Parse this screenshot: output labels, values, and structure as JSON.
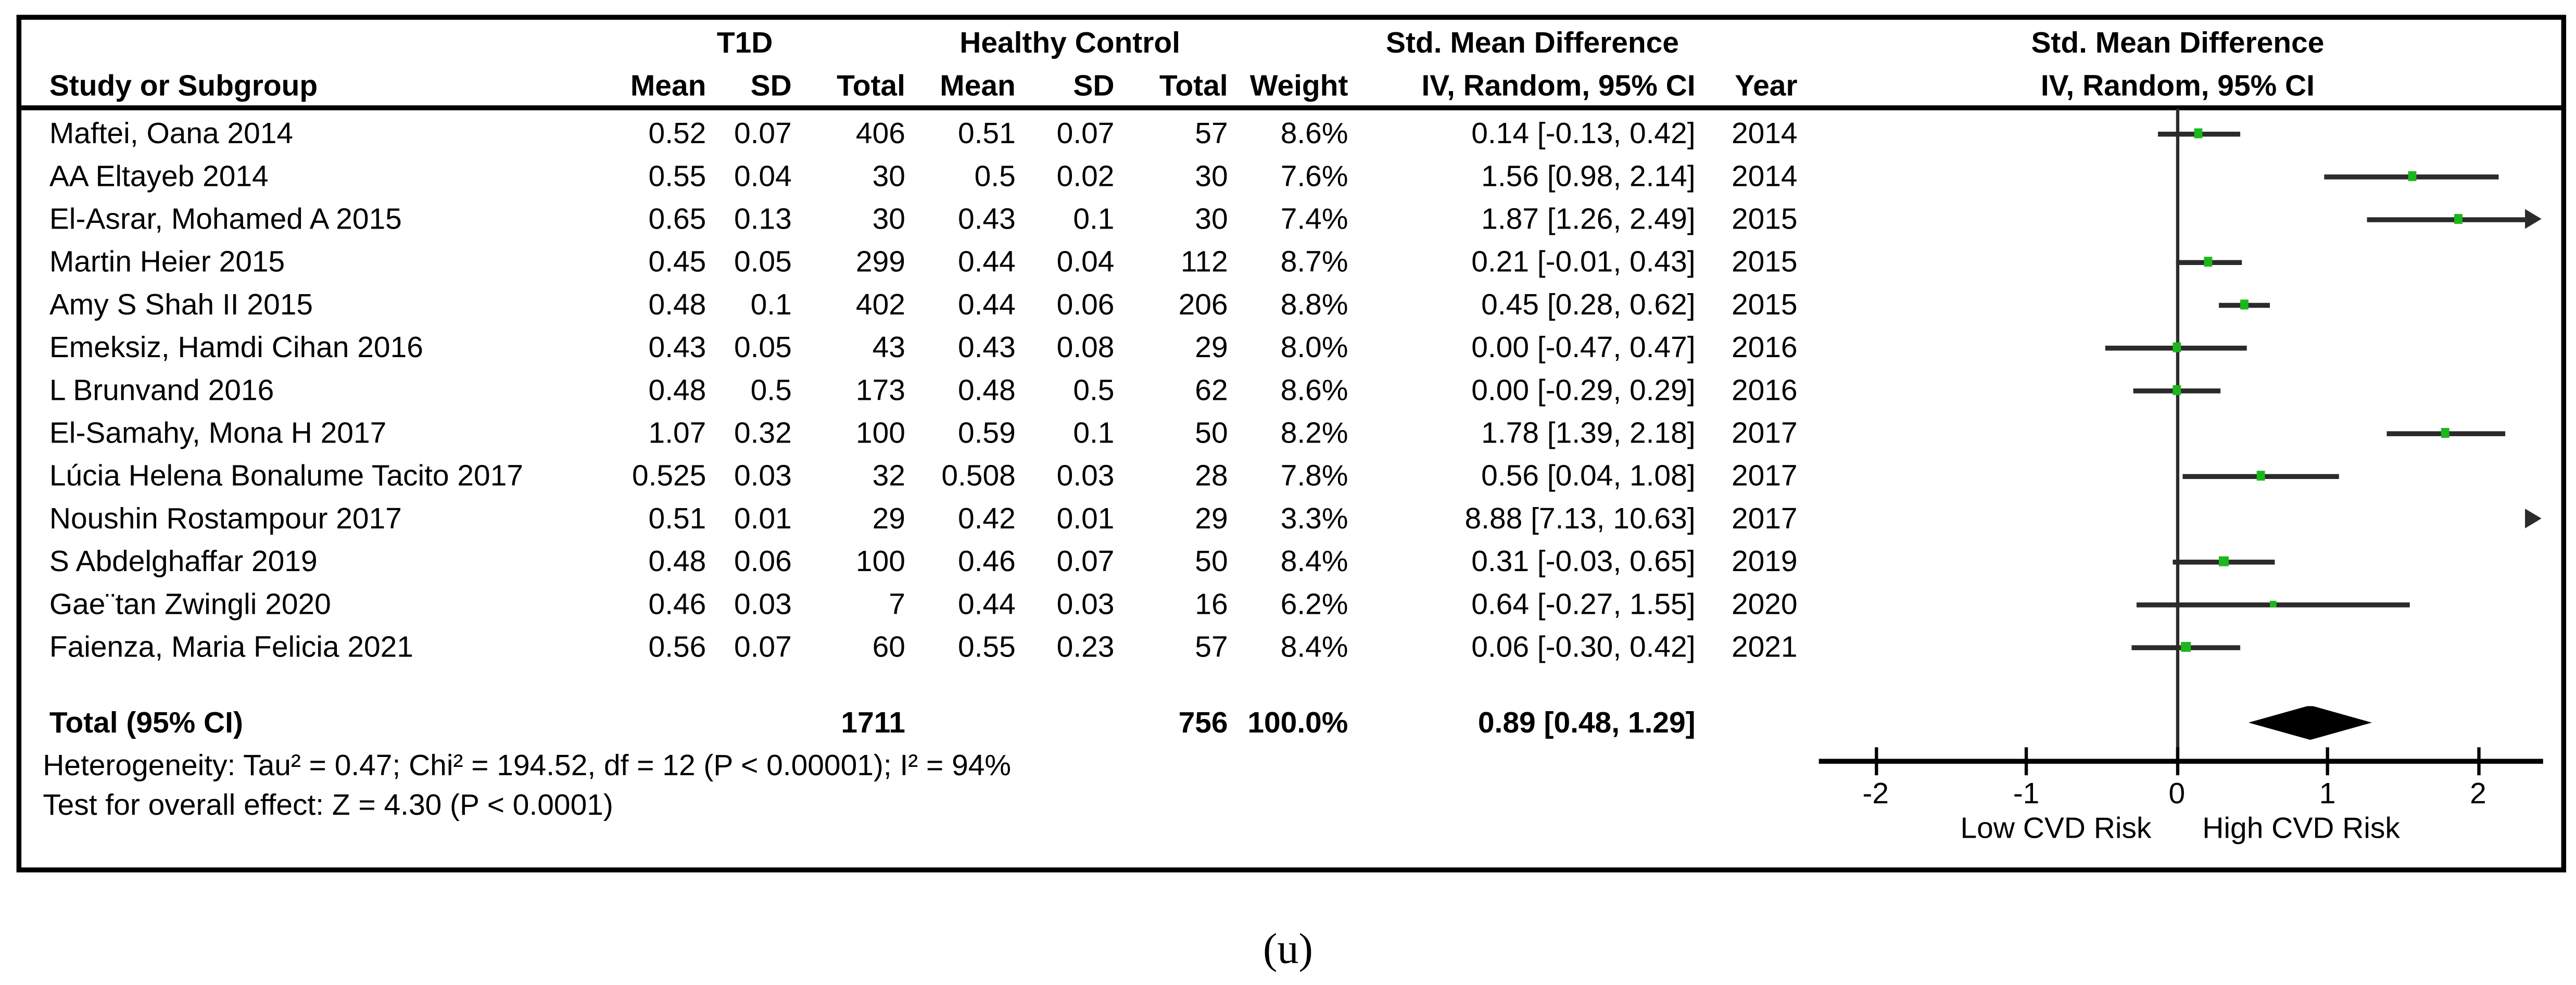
{
  "header": {
    "group_t1d": "T1D",
    "group_control": "Healthy Control",
    "group_smd": "Std. Mean Difference",
    "col_study": "Study or Subgroup",
    "col_mean": "Mean",
    "col_sd": "SD",
    "col_total": "Total",
    "col_mean2": "Mean",
    "col_sd2": "SD",
    "col_total2": "Total",
    "col_weight": "Weight",
    "col_ci": "IV, Random, 95% CI",
    "col_year": "Year",
    "right_panel_title": "Std. Mean Difference",
    "right_panel_subtitle": "IV, Random, 95% CI"
  },
  "rows": [
    {
      "study": "Maftei, Oana 2014",
      "mean1": "0.52",
      "sd1": "0.07",
      "total1": "406",
      "mean2": "0.51",
      "sd2": "0.07",
      "total2": "57",
      "weight": "8.6%",
      "ci": "0.14 [-0.13, 0.42]",
      "year": "2014",
      "smd": 0.14,
      "lo": -0.13,
      "hi": 0.42,
      "w": 8.6
    },
    {
      "study": "AA Eltayeb 2014",
      "mean1": "0.55",
      "sd1": "0.04",
      "total1": "30",
      "mean2": "0.5",
      "sd2": "0.02",
      "total2": "30",
      "weight": "7.6%",
      "ci": "1.56 [0.98, 2.14]",
      "year": "2014",
      "smd": 1.56,
      "lo": 0.98,
      "hi": 2.14,
      "w": 7.6
    },
    {
      "study": "El-Asrar, Mohamed A 2015",
      "mean1": "0.65",
      "sd1": "0.13",
      "total1": "30",
      "mean2": "0.43",
      "sd2": "0.1",
      "total2": "30",
      "weight": "7.4%",
      "ci": "1.87 [1.26, 2.49]",
      "year": "2015",
      "smd": 1.87,
      "lo": 1.26,
      "hi": 2.49,
      "w": 7.4
    },
    {
      "study": "Martin Heier 2015",
      "mean1": "0.45",
      "sd1": "0.05",
      "total1": "299",
      "mean2": "0.44",
      "sd2": "0.04",
      "total2": "112",
      "weight": "8.7%",
      "ci": "0.21 [-0.01, 0.43]",
      "year": "2015",
      "smd": 0.21,
      "lo": -0.01,
      "hi": 0.43,
      "w": 8.7
    },
    {
      "study": "Amy S Shah II 2015",
      "mean1": "0.48",
      "sd1": "0.1",
      "total1": "402",
      "mean2": "0.44",
      "sd2": "0.06",
      "total2": "206",
      "weight": "8.8%",
      "ci": "0.45 [0.28, 0.62]",
      "year": "2015",
      "smd": 0.45,
      "lo": 0.28,
      "hi": 0.62,
      "w": 8.8
    },
    {
      "study": "Emeksiz, Hamdi Cihan 2016",
      "mean1": "0.43",
      "sd1": "0.05",
      "total1": "43",
      "mean2": "0.43",
      "sd2": "0.08",
      "total2": "29",
      "weight": "8.0%",
      "ci": "0.00 [-0.47, 0.47]",
      "year": "2016",
      "smd": 0.0,
      "lo": -0.47,
      "hi": 0.47,
      "w": 8.0
    },
    {
      "study": "L Brunvand 2016",
      "mean1": "0.48",
      "sd1": "0.5",
      "total1": "173",
      "mean2": "0.48",
      "sd2": "0.5",
      "total2": "62",
      "weight": "8.6%",
      "ci": "0.00 [-0.29, 0.29]",
      "year": "2016",
      "smd": 0.0,
      "lo": -0.29,
      "hi": 0.29,
      "w": 8.6
    },
    {
      "study": "El-Samahy, Mona H 2017",
      "mean1": "1.07",
      "sd1": "0.32",
      "total1": "100",
      "mean2": "0.59",
      "sd2": "0.1",
      "total2": "50",
      "weight": "8.2%",
      "ci": "1.78 [1.39, 2.18]",
      "year": "2017",
      "smd": 1.78,
      "lo": 1.39,
      "hi": 2.18,
      "w": 8.2
    },
    {
      "study": "Lúcia Helena Bonalume Tacito 2017",
      "mean1": "0.525",
      "sd1": "0.03",
      "total1": "32",
      "mean2": "0.508",
      "sd2": "0.03",
      "total2": "28",
      "weight": "7.8%",
      "ci": "0.56 [0.04, 1.08]",
      "year": "2017",
      "smd": 0.56,
      "lo": 0.04,
      "hi": 1.08,
      "w": 7.8
    },
    {
      "study": "Noushin Rostampour 2017",
      "mean1": "0.51",
      "sd1": "0.01",
      "total1": "29",
      "mean2": "0.42",
      "sd2": "0.01",
      "total2": "29",
      "weight": "3.3%",
      "ci": "8.88 [7.13, 10.63]",
      "year": "2017",
      "smd": 8.88,
      "lo": 7.13,
      "hi": 10.63,
      "w": 3.3
    },
    {
      "study": "S Abdelghaffar 2019",
      "mean1": "0.48",
      "sd1": "0.06",
      "total1": "100",
      "mean2": "0.46",
      "sd2": "0.07",
      "total2": "50",
      "weight": "8.4%",
      "ci": "0.31 [-0.03, 0.65]",
      "year": "2019",
      "smd": 0.31,
      "lo": -0.03,
      "hi": 0.65,
      "w": 8.4
    },
    {
      "study": "Gae¨tan Zwingli 2020",
      "mean1": "0.46",
      "sd1": "0.03",
      "total1": "7",
      "mean2": "0.44",
      "sd2": "0.03",
      "total2": "16",
      "weight": "6.2%",
      "ci": "0.64 [-0.27, 1.55]",
      "year": "2020",
      "smd": 0.64,
      "lo": -0.27,
      "hi": 1.55,
      "w": 6.2
    },
    {
      "study": "Faienza, Maria Felicia 2021",
      "mean1": "0.56",
      "sd1": "0.07",
      "total1": "60",
      "mean2": "0.55",
      "sd2": "0.23",
      "total2": "57",
      "weight": "8.4%",
      "ci": "0.06 [-0.30, 0.42]",
      "year": "2021",
      "smd": 0.06,
      "lo": -0.3,
      "hi": 0.42,
      "w": 8.4
    }
  ],
  "total": {
    "label": "Total (95% CI)",
    "total1": "1711",
    "total2": "756",
    "weight": "100.0%",
    "ci": "0.89 [0.48, 1.29]",
    "smd": 0.89,
    "lo": 0.48,
    "hi": 1.29
  },
  "footer": {
    "heterogeneity": "Heterogeneity: Tau² = 0.47; Chi² = 194.52, df = 12 (P < 0.00001); I² = 94%",
    "overall_effect": "Test for overall effect: Z = 4.30 (P < 0.0001)"
  },
  "axis": {
    "ticks": [
      -2,
      -1,
      0,
      1,
      2
    ],
    "min": -2.37,
    "max": 2.41,
    "left_label": "Low CVD Risk",
    "right_label": "High CVD Risk"
  },
  "caption": "(u)",
  "colors": {
    "marker_green": "#1cb71c",
    "ci_line": "#2b2b2b",
    "diamond": "#000000"
  },
  "chart_data": {
    "type": "scatter",
    "subtype": "forest-plot",
    "title": "Std. Mean Difference, IV, Random, 95% CI (T1D vs Healthy Control)",
    "xlabel_left": "Low CVD Risk",
    "xlabel_right": "High CVD Risk",
    "xlim": [
      -2.37,
      2.41
    ],
    "x_ticks": [
      -2,
      -1,
      0,
      1,
      2
    ],
    "grid": false,
    "studies": [
      {
        "name": "Maftei, Oana 2014",
        "t1d_mean": 0.52,
        "t1d_sd": 0.07,
        "t1d_total": 406,
        "ctrl_mean": 0.51,
        "ctrl_sd": 0.07,
        "ctrl_total": 57,
        "weight_pct": 8.6,
        "smd": 0.14,
        "ci95": [
          -0.13,
          0.42
        ],
        "year": 2014
      },
      {
        "name": "AA Eltayeb 2014",
        "t1d_mean": 0.55,
        "t1d_sd": 0.04,
        "t1d_total": 30,
        "ctrl_mean": 0.5,
        "ctrl_sd": 0.02,
        "ctrl_total": 30,
        "weight_pct": 7.6,
        "smd": 1.56,
        "ci95": [
          0.98,
          2.14
        ],
        "year": 2014
      },
      {
        "name": "El-Asrar, Mohamed A 2015",
        "t1d_mean": 0.65,
        "t1d_sd": 0.13,
        "t1d_total": 30,
        "ctrl_mean": 0.43,
        "ctrl_sd": 0.1,
        "ctrl_total": 30,
        "weight_pct": 7.4,
        "smd": 1.87,
        "ci95": [
          1.26,
          2.49
        ],
        "year": 2015
      },
      {
        "name": "Martin Heier 2015",
        "t1d_mean": 0.45,
        "t1d_sd": 0.05,
        "t1d_total": 299,
        "ctrl_mean": 0.44,
        "ctrl_sd": 0.04,
        "ctrl_total": 112,
        "weight_pct": 8.7,
        "smd": 0.21,
        "ci95": [
          -0.01,
          0.43
        ],
        "year": 2015
      },
      {
        "name": "Amy S Shah II 2015",
        "t1d_mean": 0.48,
        "t1d_sd": 0.1,
        "t1d_total": 402,
        "ctrl_mean": 0.44,
        "ctrl_sd": 0.06,
        "ctrl_total": 206,
        "weight_pct": 8.8,
        "smd": 0.45,
        "ci95": [
          0.28,
          0.62
        ],
        "year": 2015
      },
      {
        "name": "Emeksiz, Hamdi Cihan 2016",
        "t1d_mean": 0.43,
        "t1d_sd": 0.05,
        "t1d_total": 43,
        "ctrl_mean": 0.43,
        "ctrl_sd": 0.08,
        "ctrl_total": 29,
        "weight_pct": 8.0,
        "smd": 0.0,
        "ci95": [
          -0.47,
          0.47
        ],
        "year": 2016
      },
      {
        "name": "L Brunvand 2016",
        "t1d_mean": 0.48,
        "t1d_sd": 0.5,
        "t1d_total": 173,
        "ctrl_mean": 0.48,
        "ctrl_sd": 0.5,
        "ctrl_total": 62,
        "weight_pct": 8.6,
        "smd": 0.0,
        "ci95": [
          -0.29,
          0.29
        ],
        "year": 2016
      },
      {
        "name": "El-Samahy, Mona H 2017",
        "t1d_mean": 1.07,
        "t1d_sd": 0.32,
        "t1d_total": 100,
        "ctrl_mean": 0.59,
        "ctrl_sd": 0.1,
        "ctrl_total": 50,
        "weight_pct": 8.2,
        "smd": 1.78,
        "ci95": [
          1.39,
          2.18
        ],
        "year": 2017
      },
      {
        "name": "Lúcia Helena Bonalume Tacito 2017",
        "t1d_mean": 0.525,
        "t1d_sd": 0.03,
        "t1d_total": 32,
        "ctrl_mean": 0.508,
        "ctrl_sd": 0.03,
        "ctrl_total": 28,
        "weight_pct": 7.8,
        "smd": 0.56,
        "ci95": [
          0.04,
          1.08
        ],
        "year": 2017
      },
      {
        "name": "Noushin Rostampour 2017",
        "t1d_mean": 0.51,
        "t1d_sd": 0.01,
        "t1d_total": 29,
        "ctrl_mean": 0.42,
        "ctrl_sd": 0.01,
        "ctrl_total": 29,
        "weight_pct": 3.3,
        "smd": 8.88,
        "ci95": [
          7.13,
          10.63
        ],
        "year": 2017
      },
      {
        "name": "S Abdelghaffar 2019",
        "t1d_mean": 0.48,
        "t1d_sd": 0.06,
        "t1d_total": 100,
        "ctrl_mean": 0.46,
        "ctrl_sd": 0.07,
        "ctrl_total": 50,
        "weight_pct": 8.4,
        "smd": 0.31,
        "ci95": [
          -0.03,
          0.65
        ],
        "year": 2019
      },
      {
        "name": "Gae¨tan Zwingli 2020",
        "t1d_mean": 0.46,
        "t1d_sd": 0.03,
        "t1d_total": 7,
        "ctrl_mean": 0.44,
        "ctrl_sd": 0.03,
        "ctrl_total": 16,
        "weight_pct": 6.2,
        "smd": 0.64,
        "ci95": [
          -0.27,
          1.55
        ],
        "year": 2020
      },
      {
        "name": "Faienza, Maria Felicia 2021",
        "t1d_mean": 0.56,
        "t1d_sd": 0.07,
        "t1d_total": 60,
        "ctrl_mean": 0.55,
        "ctrl_sd": 0.23,
        "ctrl_total": 57,
        "weight_pct": 8.4,
        "smd": 0.06,
        "ci95": [
          -0.3,
          0.42
        ],
        "year": 2021
      }
    ],
    "pooled": {
      "label": "Total (95% CI)",
      "t1d_total": 1711,
      "ctrl_total": 756,
      "weight_pct": 100.0,
      "smd": 0.89,
      "ci95": [
        0.48,
        1.29
      ]
    },
    "heterogeneity": {
      "tau2": 0.47,
      "chi2": 194.52,
      "df": 12,
      "p": "< 0.00001",
      "i2_pct": 94
    },
    "overall_effect": {
      "z": 4.3,
      "p": "< 0.0001"
    }
  }
}
